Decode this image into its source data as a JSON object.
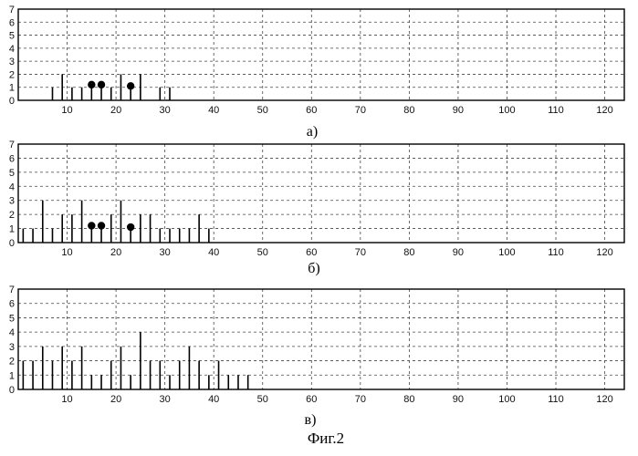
{
  "figure_caption": "Фиг.2",
  "chart_data": [
    {
      "type": "bar",
      "label": "а)",
      "xlim": [
        0,
        124
      ],
      "ylim": [
        0,
        7
      ],
      "xticks": [
        10,
        20,
        30,
        40,
        50,
        60,
        70,
        80,
        90,
        100,
        110,
        120
      ],
      "yticks": [
        0,
        1,
        2,
        3,
        4,
        5,
        6,
        7
      ],
      "grid": true,
      "x": [
        5,
        7,
        9,
        11,
        13,
        15,
        17,
        19,
        21,
        23,
        25,
        27,
        29,
        31
      ],
      "values": [
        0,
        1,
        2,
        1,
        1,
        1,
        1,
        1,
        2,
        1,
        2,
        0,
        1,
        1
      ],
      "markers": [
        {
          "x": 15,
          "y": 1.2
        },
        {
          "x": 17,
          "y": 1.2
        },
        {
          "x": 23,
          "y": 1.1
        }
      ]
    },
    {
      "type": "bar",
      "label": "б)",
      "xlim": [
        0,
        124
      ],
      "ylim": [
        0,
        7
      ],
      "xticks": [
        10,
        20,
        30,
        40,
        50,
        60,
        70,
        80,
        90,
        100,
        110,
        120
      ],
      "yticks": [
        0,
        1,
        2,
        3,
        4,
        5,
        6,
        7
      ],
      "grid": true,
      "x": [
        1,
        3,
        5,
        7,
        9,
        11,
        13,
        15,
        17,
        19,
        21,
        23,
        25,
        27,
        29,
        31,
        33,
        35,
        37,
        39
      ],
      "values": [
        1,
        1,
        3,
        1,
        2,
        2,
        3,
        1,
        1,
        2,
        3,
        1,
        2,
        2,
        1,
        1,
        1,
        1,
        2,
        1
      ],
      "markers": [
        {
          "x": 15,
          "y": 1.2
        },
        {
          "x": 17,
          "y": 1.2
        },
        {
          "x": 23,
          "y": 1.1
        }
      ]
    },
    {
      "type": "bar",
      "label": "в)",
      "xlim": [
        0,
        124
      ],
      "ylim": [
        0,
        7
      ],
      "xticks": [
        10,
        20,
        30,
        40,
        50,
        60,
        70,
        80,
        90,
        100,
        110,
        120
      ],
      "yticks": [
        0,
        1,
        2,
        3,
        4,
        5,
        6,
        7
      ],
      "grid": true,
      "x": [
        1,
        3,
        5,
        7,
        9,
        11,
        13,
        15,
        17,
        19,
        21,
        23,
        25,
        27,
        29,
        31,
        33,
        35,
        37,
        39,
        41,
        43,
        45,
        47
      ],
      "values": [
        2,
        2,
        3,
        2,
        3,
        2,
        3,
        1,
        1,
        2,
        3,
        1,
        4,
        2,
        2,
        1,
        2,
        3,
        2,
        1,
        2,
        1,
        1,
        1
      ],
      "markers": []
    }
  ]
}
